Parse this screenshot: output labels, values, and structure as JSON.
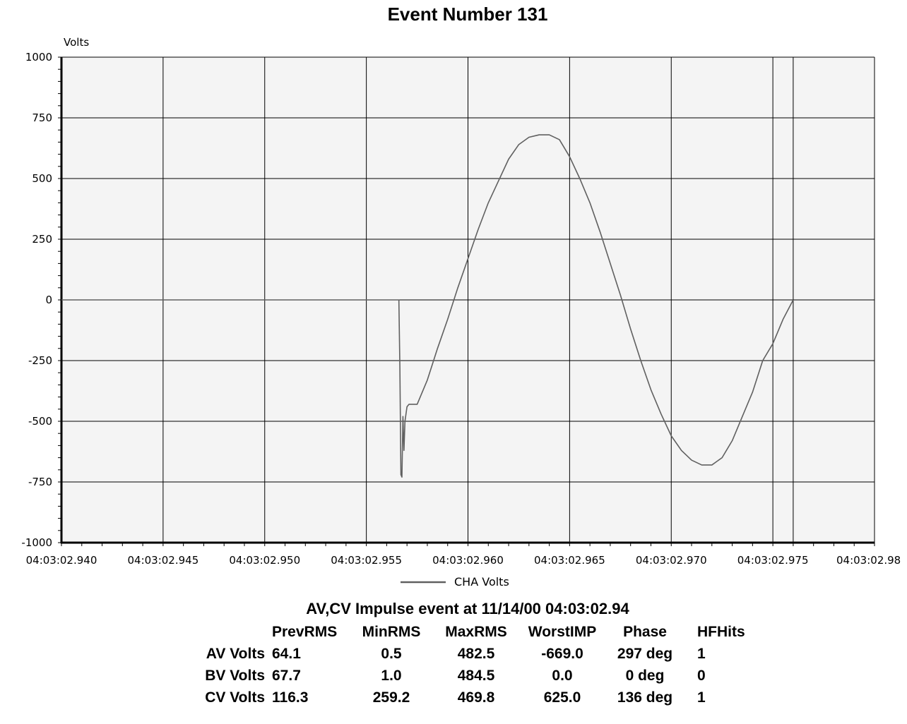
{
  "chart_data": {
    "type": "line",
    "title": "Event Number 131",
    "ylabel": "Volts",
    "xlabel": "",
    "ylim": [
      -1000,
      1000
    ],
    "y_ticks": [
      "1000",
      "750",
      "500",
      "250",
      "0",
      "-250",
      "-500",
      "-750",
      "-1000"
    ],
    "x_tick_labels": [
      "04:03:02.940",
      "04:03:02.945",
      "04:03:02.950",
      "04:03:02.955",
      "04:03:02.960",
      "04:03:02.965",
      "04:03:02.970",
      "04:03:02.975",
      "04:03:02.98"
    ],
    "x_range_ms": [
      940,
      980
    ],
    "grid": true,
    "legend": "bottom-center",
    "series": [
      {
        "name": "CHA Volts",
        "color": "#606060",
        "x": [
          940.0,
          956.6,
          956.65,
          956.7,
          956.75,
          956.8,
          956.85,
          956.9,
          957.0,
          957.1,
          957.3,
          957.5,
          958.0,
          958.5,
          959.0,
          959.5,
          960.0,
          960.5,
          961.0,
          961.5,
          962.0,
          962.5,
          963.0,
          963.5,
          964.0,
          964.5,
          965.0,
          965.5,
          966.0,
          966.5,
          967.0,
          967.5,
          968.0,
          968.5,
          969.0,
          969.5,
          970.0,
          970.5,
          971.0,
          971.5,
          972.0,
          972.5,
          973.0,
          973.5,
          974.0,
          974.5,
          975.0,
          975.5,
          976.0
        ],
        "y": [
          0,
          0,
          -280,
          -720,
          -730,
          -480,
          -620,
          -500,
          -440,
          -430,
          -430,
          -430,
          -330,
          -200,
          -80,
          50,
          170,
          290,
          400,
          490,
          580,
          640,
          670,
          680,
          680,
          660,
          590,
          500,
          400,
          280,
          150,
          20,
          -120,
          -250,
          -370,
          -470,
          -560,
          -620,
          -660,
          -680,
          -680,
          -650,
          -580,
          -480,
          -380,
          -250,
          -180,
          -80,
          0
        ]
      }
    ]
  },
  "summary": {
    "heading": "AV,CV Impulse event at 11/14/00 04:03:02.94",
    "columns": [
      "PrevRMS",
      "MinRMS",
      "MaxRMS",
      "WorstIMP",
      "Phase",
      "HFHits"
    ],
    "rows": [
      {
        "label": "AV Volts",
        "values": [
          "64.1",
          "0.5",
          "482.5",
          "-669.0",
          "297 deg",
          "1"
        ]
      },
      {
        "label": "BV Volts",
        "values": [
          "67.7",
          "1.0",
          "484.5",
          "0.0",
          "0 deg",
          "0"
        ]
      },
      {
        "label": "CV Volts",
        "values": [
          "116.3",
          "259.2",
          "469.8",
          "625.0",
          "136 deg",
          "1"
        ]
      }
    ]
  }
}
